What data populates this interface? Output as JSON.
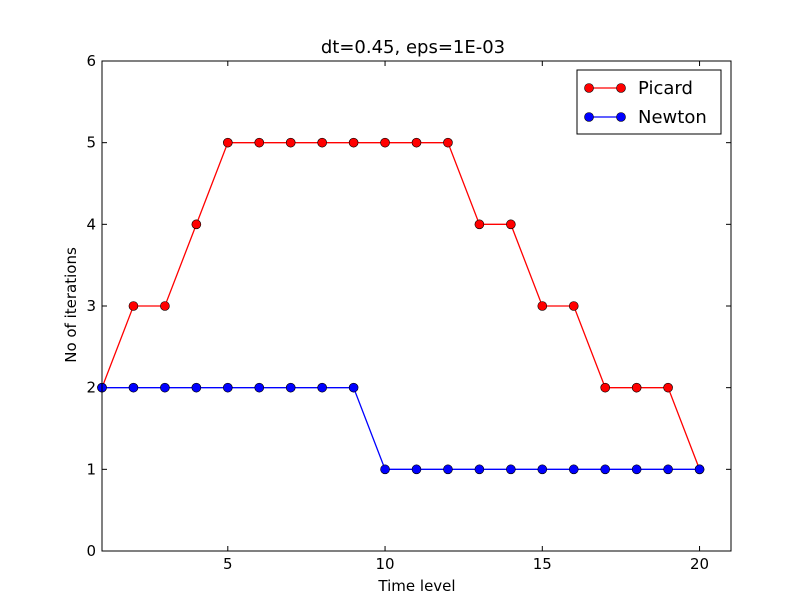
{
  "chart_data": {
    "type": "line",
    "title": "dt=0.45, eps=1E-03",
    "xlabel": "Time level",
    "ylabel": "No of iterations",
    "xlim": [
      1,
      21
    ],
    "ylim": [
      0,
      6
    ],
    "xticks": [
      5,
      10,
      15,
      20
    ],
    "yticks": [
      0,
      1,
      2,
      3,
      4,
      5,
      6
    ],
    "grid": false,
    "legend_position": "top-right",
    "x": [
      1,
      2,
      3,
      4,
      5,
      6,
      7,
      8,
      9,
      10,
      11,
      12,
      13,
      14,
      15,
      16,
      17,
      18,
      19,
      20
    ],
    "series": [
      {
        "name": "Picard",
        "color": "#ff0000",
        "marker": "circle",
        "values": [
          2,
          3,
          3,
          4,
          5,
          5,
          5,
          5,
          5,
          5,
          5,
          5,
          4,
          4,
          3,
          3,
          2,
          2,
          2,
          1
        ]
      },
      {
        "name": "Newton",
        "color": "#0000ff",
        "marker": "circle",
        "values": [
          2,
          2,
          2,
          2,
          2,
          2,
          2,
          2,
          2,
          1,
          1,
          1,
          1,
          1,
          1,
          1,
          1,
          1,
          1,
          1
        ]
      }
    ]
  }
}
